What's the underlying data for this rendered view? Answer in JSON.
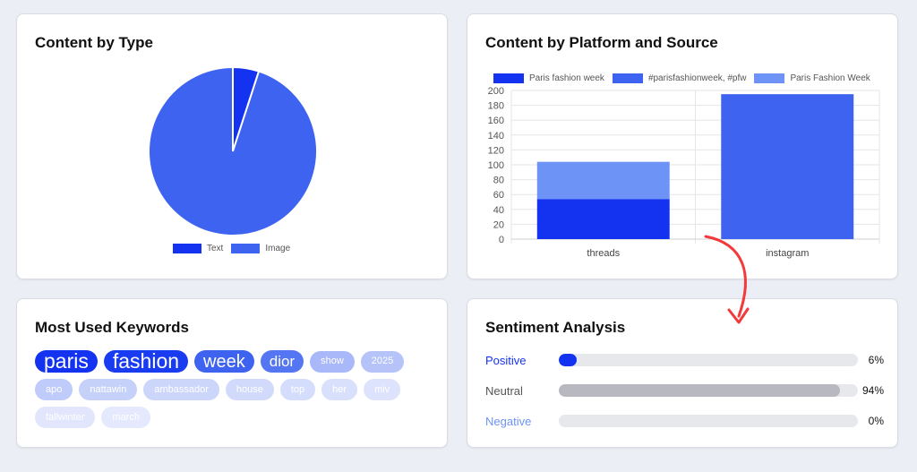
{
  "colors": {
    "text": "#1433f0",
    "image": "#3d63f0",
    "paris_fashion_week_lc": "#1433f0",
    "hashtag": "#3d63f0",
    "paris_fashion_week_tc": "#6e93f7",
    "positive": "#1433f0",
    "neutral": "#b8b9c0",
    "negative": "#6e93f7",
    "arrow": "#f23a3a"
  },
  "content_by_type": {
    "title": "Content by Type",
    "legend": [
      {
        "label": "Text",
        "color": "#1433f0"
      },
      {
        "label": "Image",
        "color": "#3d63f0"
      }
    ]
  },
  "content_by_platform": {
    "title": "Content by Platform and Source",
    "legend": [
      {
        "label": "Paris fashion week",
        "color": "#1433f0"
      },
      {
        "label": "#parisfashionweek, #pfw",
        "color": "#3d63f0"
      },
      {
        "label": "Paris Fashion Week",
        "color": "#6e93f7"
      }
    ]
  },
  "chart_data": [
    {
      "type": "pie",
      "title": "Content by Type",
      "categories": [
        "Text",
        "Image"
      ],
      "values": [
        5,
        95
      ]
    },
    {
      "type": "bar",
      "stacked": true,
      "title": "Content by Platform and Source",
      "categories": [
        "threads",
        "instagram"
      ],
      "series": [
        {
          "name": "Paris fashion week",
          "values": [
            54,
            0
          ]
        },
        {
          "name": "#parisfashionweek, #pfw",
          "values": [
            0,
            195
          ]
        },
        {
          "name": "Paris Fashion Week",
          "values": [
            50,
            0
          ]
        }
      ],
      "ylim": [
        0,
        200
      ],
      "yticks": [
        0,
        20,
        40,
        60,
        80,
        100,
        120,
        140,
        160,
        180,
        200
      ],
      "grid": true,
      "legend": "top"
    }
  ],
  "keywords": {
    "title": "Most Used Keywords",
    "items": [
      {
        "text": "paris",
        "size": 23,
        "bg": "#1433f0",
        "fg": "#ffffff"
      },
      {
        "text": "fashion",
        "size": 23,
        "bg": "#1a3cf1",
        "fg": "#ffffff"
      },
      {
        "text": "week",
        "size": 20,
        "bg": "#3d63f0",
        "fg": "#ffffff"
      },
      {
        "text": "dior",
        "size": 17,
        "bg": "#5476f2",
        "fg": "#ffffff"
      },
      {
        "text": "show",
        "size": 11,
        "bg": "#a8b8f8",
        "fg": "#ffffff"
      },
      {
        "text": "2025",
        "size": 11,
        "bg": "#b5c3f9",
        "fg": "#ffffff"
      },
      {
        "text": "apo",
        "size": 11,
        "bg": "#bfcbfa",
        "fg": "#ffffff"
      },
      {
        "text": "nattawin",
        "size": 11,
        "bg": "#c6d1fa",
        "fg": "#ffffff"
      },
      {
        "text": "ambassador",
        "size": 11,
        "bg": "#ccd6fb",
        "fg": "#ffffff"
      },
      {
        "text": "house",
        "size": 11,
        "bg": "#d1dafb",
        "fg": "#ffffff"
      },
      {
        "text": "top",
        "size": 11,
        "bg": "#d5ddfc",
        "fg": "#ffffff"
      },
      {
        "text": "her",
        "size": 11,
        "bg": "#d9e0fc",
        "fg": "#ffffff"
      },
      {
        "text": "miv",
        "size": 11,
        "bg": "#dde3fc",
        "fg": "#ffffff"
      },
      {
        "text": "fallwinter",
        "size": 11,
        "bg": "#e1e6fd",
        "fg": "#ffffff"
      },
      {
        "text": "march",
        "size": 11,
        "bg": "#e4e9fd",
        "fg": "#ffffff"
      }
    ]
  },
  "sentiment": {
    "title": "Sentiment Analysis",
    "rows": [
      {
        "label": "Positive",
        "pct_text": "6%",
        "value": 6,
        "label_color": "#1433f0",
        "bar_color": "#1433f0"
      },
      {
        "label": "Neutral",
        "pct_text": "94%",
        "value": 94,
        "label_color": "#555555",
        "bar_color": "#b8b9c0"
      },
      {
        "label": "Negative",
        "pct_text": "0%",
        "value": 0,
        "label_color": "#6e93f7",
        "bar_color": "#6e93f7"
      }
    ]
  }
}
